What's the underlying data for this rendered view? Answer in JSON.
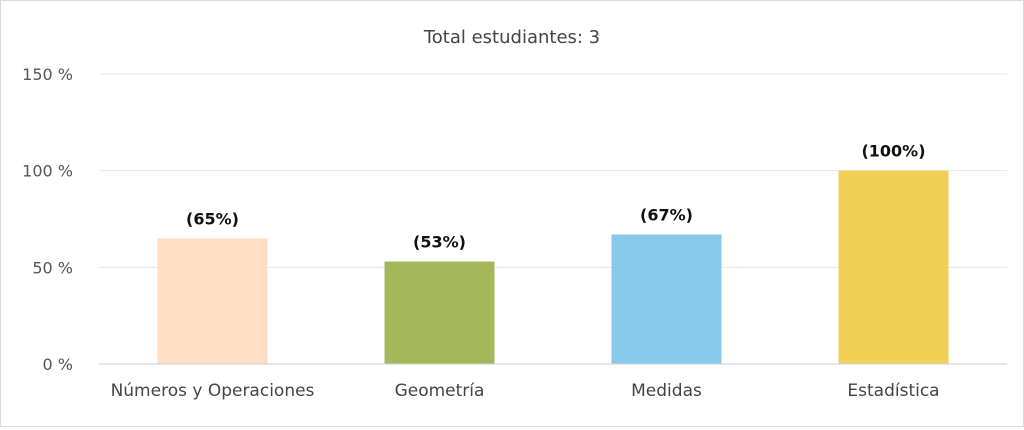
{
  "chart_data": {
    "type": "bar",
    "title": "Total estudiantes: 3",
    "xlabel": "",
    "ylabel": "",
    "categories": [
      "Números y Operaciones",
      "Geometría",
      "Medidas",
      "Estadística"
    ],
    "values": [
      65,
      53,
      67,
      100
    ],
    "data_labels": [
      "(65%)",
      "(53%)",
      "(67%)",
      "(100%)"
    ],
    "ylim": [
      0,
      150
    ],
    "yticks": [
      0,
      50,
      100,
      150
    ],
    "ytick_labels": [
      "0 %",
      "50 %",
      "100 %",
      "150 %"
    ],
    "colors": [
      "#ffdec5",
      "#a4b85a",
      "#88c9eb",
      "#f0d055"
    ],
    "grid": true,
    "legend": "none"
  }
}
